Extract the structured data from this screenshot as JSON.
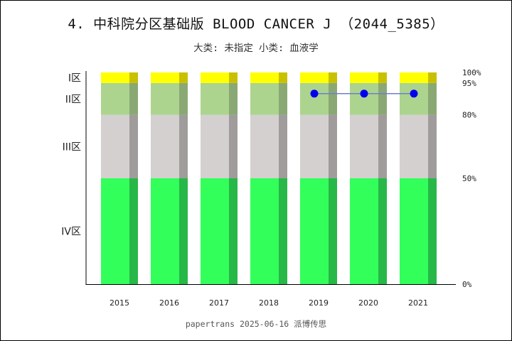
{
  "title": "4. 中科院分区基础版 BLOOD CANCER J （2044_5385）",
  "subtitle": "大类: 未指定 小类: 血液学",
  "footer": "papertrans 2025-06-16 派博传思",
  "colors": {
    "zone1": "#ffff00",
    "zone1_shade": "#c8c000",
    "zone2": "#acd48e",
    "zone2_shade": "#8aa874",
    "zone3": "#d4d0d0",
    "zone3_shade": "#a09c9c",
    "zone4": "#33ff5a",
    "zone4_shade": "#27b848",
    "line": "#6f7fd0",
    "marker": "#0000ee"
  },
  "chart_data": {
    "type": "bar",
    "stacked": true,
    "categories": [
      "2015",
      "2016",
      "2017",
      "2018",
      "2019",
      "2020",
      "2021"
    ],
    "ylim": [
      0,
      100
    ],
    "right_ticks": [
      {
        "value": 0,
        "label": "0%"
      },
      {
        "value": 50,
        "label": "50%"
      },
      {
        "value": 80,
        "label": "80%"
      },
      {
        "value": 95,
        "label": "95%"
      },
      {
        "value": 100,
        "label": "100%"
      }
    ],
    "zones": [
      {
        "label": "IV区",
        "from": 0,
        "to": 50
      },
      {
        "label": "III区",
        "from": 50,
        "to": 80
      },
      {
        "label": "II区",
        "from": 80,
        "to": 95
      },
      {
        "label": "I区",
        "from": 95,
        "to": 100
      }
    ],
    "series": [
      {
        "type": "line",
        "values": [
          null,
          null,
          null,
          null,
          90,
          90,
          90
        ]
      }
    ],
    "grid": false,
    "legend": "none"
  }
}
